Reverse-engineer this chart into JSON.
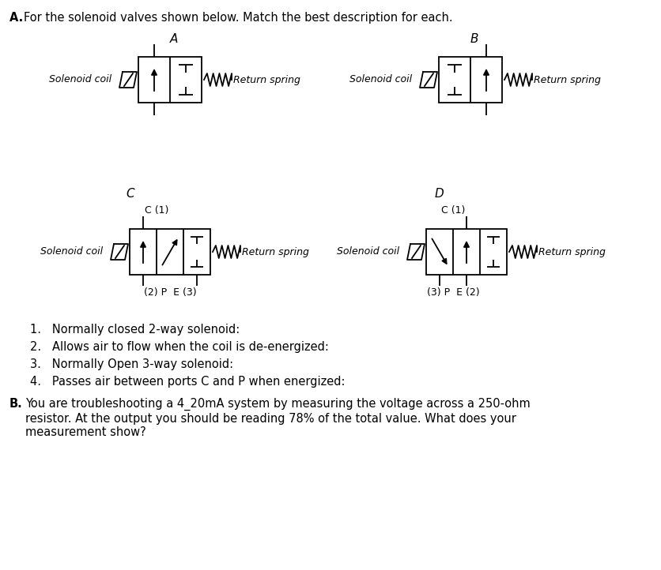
{
  "title_line": "A. For the solenoid valves shown below. Match the best description for each.",
  "label_A": "A",
  "label_B": "B",
  "label_C": "C",
  "label_D": "D",
  "solenoid_coil_text": "Solenoid coil",
  "return_spring_text": "Return spring",
  "c1_text": "C (1)",
  "port_C_labels": "(2) P  E (3)",
  "port_D_labels": "(3) P  E (2)",
  "list_items": [
    "Normally closed 2-way solenoid:",
    "Allows air to flow when the coil is de-energized:",
    "Normally Open 3-way solenoid:",
    "Passes air between ports C and P when energized:"
  ],
  "section_B_body": "You are troubleshooting a 4_20mA system by measuring the voltage across a 250-ohm\nresistor. At the output you should be reading 78% of the total value. What does your\nmeasurement show?",
  "bg_color": "#ffffff",
  "line_color": "#000000",
  "text_color": "#000000",
  "font_size_title": 10.5,
  "font_size_label": 10,
  "font_size_list": 10.5,
  "font_size_valve": 9
}
